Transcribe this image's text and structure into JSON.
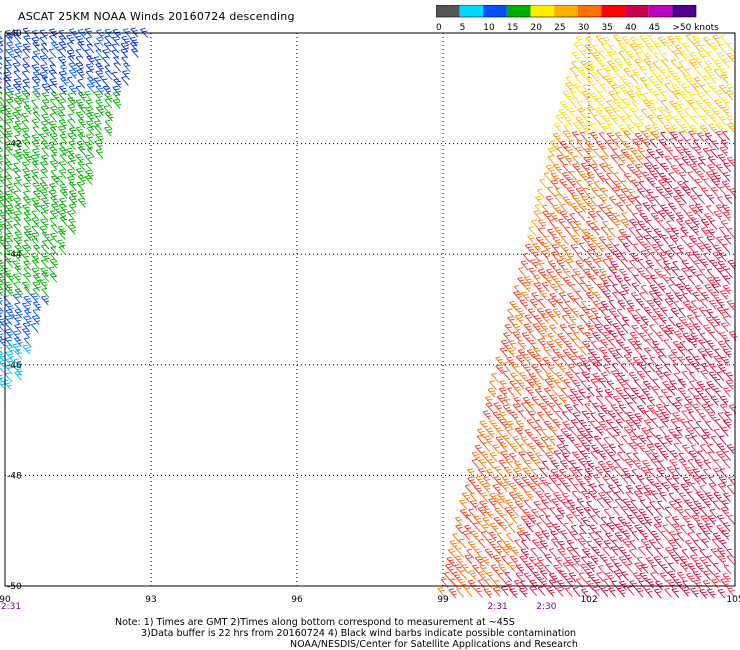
{
  "title": "ASCAT 25KM NOAA Winds 20160724 descending",
  "legend": {
    "labels": [
      "0",
      "5",
      "10",
      "15",
      "20",
      "25",
      "30",
      "35",
      "40",
      "45",
      ">50 knots"
    ],
    "colors": [
      "#555555",
      "#00d8ff",
      "#0050ff",
      "#00b000",
      "#ffee00",
      "#ffb000",
      "#ff7000",
      "#ff0000",
      "#c80050",
      "#c000c0",
      "#500090"
    ]
  },
  "chart_data": {
    "type": "map",
    "title": "ASCAT 25KM NOAA Winds 20160724 descending",
    "xlabel": "",
    "ylabel": "",
    "x_range": [
      90,
      105
    ],
    "y_range": [
      -50,
      -40
    ],
    "x_ticks": [
      "90",
      "93",
      "96",
      "99",
      "102",
      "105"
    ],
    "y_ticks": [
      "-40",
      "-42",
      "-44",
      "-46",
      "-48",
      "-50"
    ],
    "gridlines": true,
    "time_labels": [
      {
        "text": "2:31",
        "x": 90
      },
      {
        "text": "2:31",
        "x": 100.0
      },
      {
        "text": "2:30",
        "x": 101.0
      }
    ]
  },
  "notes": {
    "line1": "Note: 1) Times are GMT 2)Times along bottom correspond to measurement at ~45S",
    "line2": "3)Data buffer is 22 hrs from 20160724 4) Black wind barbs indicate possible contamination",
    "line3": "NOAA/NESDIS/Center for Satellite Applications and Research"
  }
}
